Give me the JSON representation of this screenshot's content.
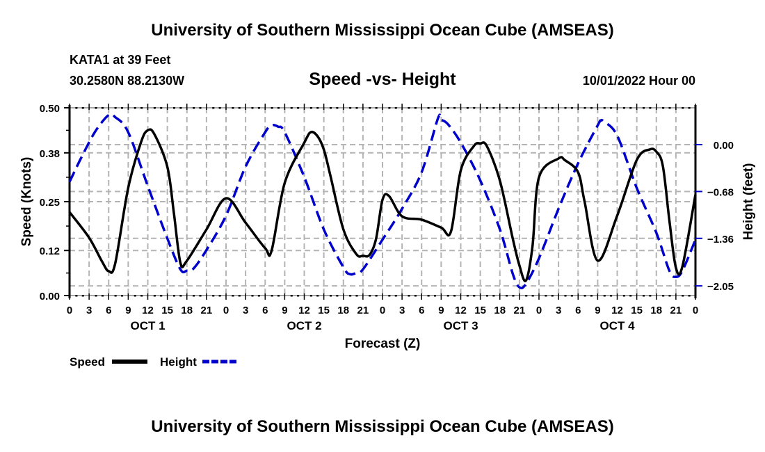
{
  "header": {
    "main_title": "University of Southern Mississippi Ocean Cube (AMSEAS)",
    "station": "KATA1 at 39 Feet",
    "coordinates": "30.2580N  88.2130W",
    "subtitle": "Speed -vs- Height",
    "datetime": "10/01/2022 Hour 00"
  },
  "footer": {
    "title": "University of Southern Mississippi Ocean Cube (AMSEAS)"
  },
  "chart_data": {
    "type": "line",
    "title": "Speed -vs- Height",
    "xlabel": "Forecast (Z)",
    "ylabel": "Speed (Knots)",
    "y2label": "Height (feet)",
    "xlim": [
      0,
      96
    ],
    "ylim": [
      0,
      0.5
    ],
    "y2lim": [
      -2.19,
      0.535
    ],
    "grid": true,
    "legend_position": "bottom-left",
    "x_tick_labels": [
      "0",
      "3",
      "6",
      "9",
      "12",
      "15",
      "18",
      "21",
      "0",
      "3",
      "6",
      "9",
      "12",
      "15",
      "18",
      "21",
      "0",
      "3",
      "6",
      "9",
      "12",
      "15",
      "18",
      "21",
      "0",
      "3",
      "6",
      "9",
      "12",
      "15",
      "18",
      "21",
      "0"
    ],
    "day_labels": [
      {
        "label": "OCT 1",
        "center_hour": 12
      },
      {
        "label": "OCT 2",
        "center_hour": 36
      },
      {
        "label": "OCT 3",
        "center_hour": 60
      },
      {
        "label": "OCT 4",
        "center_hour": 84
      }
    ],
    "y_ticks": [
      0.0,
      0.12,
      0.25,
      0.38,
      0.5
    ],
    "y_tick_labels": [
      "0.00",
      "0.12",
      "0.25",
      "0.38",
      "0.50"
    ],
    "y2_ticks": [
      0.0,
      -0.68,
      -1.36,
      -2.05
    ],
    "y2_tick_labels": [
      "0.00",
      "−0.68",
      "−1.36",
      "−2.05"
    ],
    "series": [
      {
        "name": "Speed",
        "axis": "left",
        "color": "#000000",
        "style": "solid",
        "x": [
          0,
          3,
          5,
          6,
          7,
          9,
          11,
          12,
          13,
          15,
          16,
          17,
          18,
          21,
          24,
          27,
          30,
          31,
          33,
          36,
          37,
          38,
          39,
          40,
          42,
          44,
          45,
          46,
          47,
          48,
          49,
          51,
          54,
          57,
          58.5,
          60,
          62,
          63,
          64,
          66,
          68,
          69,
          70,
          71,
          72,
          75,
          76,
          78,
          79,
          81,
          84,
          87,
          89,
          90,
          91,
          92,
          93,
          94,
          96
        ],
        "values": [
          0.222,
          0.154,
          0.09,
          0.065,
          0.085,
          0.287,
          0.41,
          0.44,
          0.43,
          0.343,
          0.22,
          0.087,
          0.093,
          0.176,
          0.259,
          0.194,
          0.126,
          0.12,
          0.3,
          0.407,
          0.435,
          0.425,
          0.389,
          0.32,
          0.176,
          0.11,
          0.106,
          0.108,
          0.15,
          0.255,
          0.265,
          0.211,
          0.202,
          0.181,
          0.17,
          0.333,
          0.398,
          0.405,
          0.398,
          0.306,
          0.15,
          0.08,
          0.04,
          0.13,
          0.315,
          0.365,
          0.36,
          0.328,
          0.25,
          0.093,
          0.213,
          0.361,
          0.389,
          0.383,
          0.345,
          0.2,
          0.074,
          0.078,
          0.269
        ]
      },
      {
        "name": "Height",
        "axis": "right",
        "color": "#0000cc",
        "style": "dashed",
        "x": [
          0,
          2,
          4,
          6,
          7,
          9,
          12,
          15,
          17,
          18,
          19,
          21,
          24,
          27,
          30,
          31,
          32,
          33,
          36,
          39,
          42,
          43,
          44,
          45,
          48,
          51,
          54,
          56.5,
          57,
          58,
          60,
          63,
          66,
          68,
          69,
          70,
          72,
          75,
          78,
          81,
          81.5,
          82,
          84,
          87,
          90,
          92,
          93,
          94,
          96
        ],
        "values": [
          -0.54,
          -0.15,
          0.2,
          0.43,
          0.4,
          0.18,
          -0.6,
          -1.36,
          -1.81,
          -1.83,
          -1.8,
          -1.53,
          -1.03,
          -0.32,
          0.18,
          0.28,
          0.26,
          0.18,
          -0.47,
          -1.23,
          -1.78,
          -1.88,
          -1.86,
          -1.81,
          -1.38,
          -0.93,
          -0.4,
          0.38,
          0.36,
          0.3,
          0.03,
          -0.52,
          -1.23,
          -1.88,
          -2.07,
          -2.02,
          -1.65,
          -0.93,
          -0.27,
          0.28,
          0.35,
          0.33,
          0.13,
          -0.63,
          -1.28,
          -1.83,
          -1.92,
          -1.83,
          -1.38
        ]
      }
    ]
  }
}
